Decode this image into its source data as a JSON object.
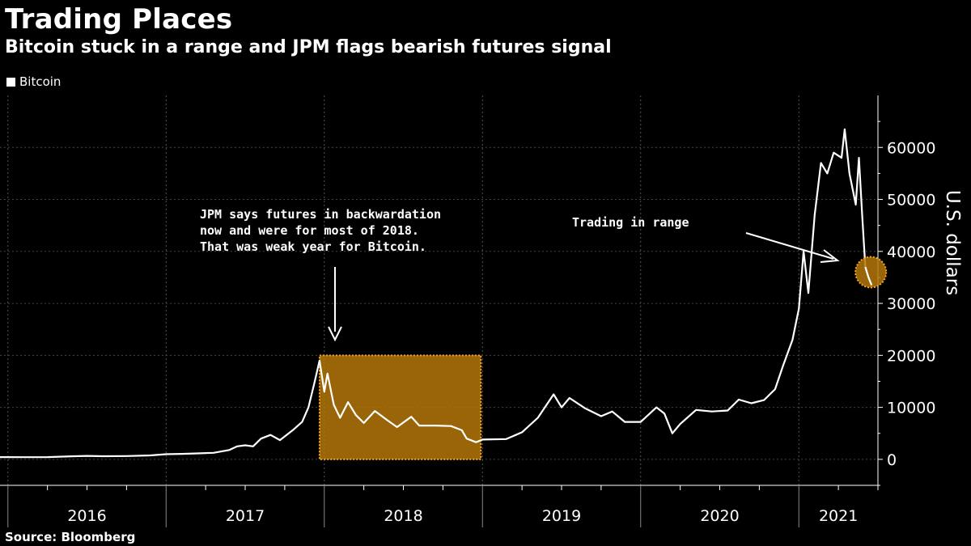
{
  "header": {
    "title": "Trading Places",
    "subtitle": "Bitcoin stuck in a range and JPM flags bearish futures signal"
  },
  "legend": {
    "label": "Bitcoin"
  },
  "source": "Source: Bloomberg",
  "colors": {
    "background": "#000000",
    "line": "#ffffff",
    "highlight": "#c8860a",
    "highlight_border": "#f5a623"
  },
  "chart_data": {
    "type": "line",
    "ylabel": "U.S. dollars",
    "xlabel": "",
    "ylim": [
      -5000,
      70000
    ],
    "yticks": [
      0,
      10000,
      20000,
      30000,
      40000,
      50000,
      60000
    ],
    "xlim": [
      2015.95,
      2021.5
    ],
    "year_labels": [
      "2016",
      "2017",
      "2018",
      "2019",
      "2020",
      "2021"
    ],
    "series": [
      {
        "name": "Bitcoin",
        "points": [
          [
            2015.95,
            430
          ],
          [
            2016.1,
            420
          ],
          [
            2016.25,
            430
          ],
          [
            2016.4,
            580
          ],
          [
            2016.5,
            670
          ],
          [
            2016.6,
            600
          ],
          [
            2016.75,
            630
          ],
          [
            2016.9,
            750
          ],
          [
            2017.0,
            990
          ],
          [
            2017.1,
            1050
          ],
          [
            2017.2,
            1150
          ],
          [
            2017.3,
            1250
          ],
          [
            2017.4,
            1800
          ],
          [
            2017.45,
            2500
          ],
          [
            2017.5,
            2700
          ],
          [
            2017.55,
            2500
          ],
          [
            2017.6,
            4000
          ],
          [
            2017.66,
            4700
          ],
          [
            2017.72,
            3700
          ],
          [
            2017.8,
            5600
          ],
          [
            2017.86,
            7200
          ],
          [
            2017.9,
            10000
          ],
          [
            2017.94,
            15000
          ],
          [
            2017.97,
            19000
          ],
          [
            2018.0,
            13000
          ],
          [
            2018.02,
            16500
          ],
          [
            2018.06,
            10500
          ],
          [
            2018.1,
            8000
          ],
          [
            2018.15,
            11000
          ],
          [
            2018.2,
            8500
          ],
          [
            2018.25,
            7000
          ],
          [
            2018.32,
            9300
          ],
          [
            2018.4,
            7500
          ],
          [
            2018.46,
            6200
          ],
          [
            2018.55,
            8200
          ],
          [
            2018.6,
            6500
          ],
          [
            2018.7,
            6500
          ],
          [
            2018.8,
            6400
          ],
          [
            2018.87,
            5600
          ],
          [
            2018.9,
            4000
          ],
          [
            2018.96,
            3300
          ],
          [
            2019.0,
            3800
          ],
          [
            2019.15,
            3900
          ],
          [
            2019.25,
            5200
          ],
          [
            2019.35,
            8000
          ],
          [
            2019.45,
            12500
          ],
          [
            2019.5,
            10000
          ],
          [
            2019.55,
            11800
          ],
          [
            2019.65,
            9800
          ],
          [
            2019.75,
            8300
          ],
          [
            2019.82,
            9200
          ],
          [
            2019.9,
            7200
          ],
          [
            2020.0,
            7200
          ],
          [
            2020.1,
            10000
          ],
          [
            2020.15,
            8800
          ],
          [
            2020.2,
            5000
          ],
          [
            2020.25,
            6800
          ],
          [
            2020.35,
            9500
          ],
          [
            2020.45,
            9200
          ],
          [
            2020.55,
            9400
          ],
          [
            2020.62,
            11500
          ],
          [
            2020.7,
            10800
          ],
          [
            2020.78,
            11400
          ],
          [
            2020.85,
            13500
          ],
          [
            2020.9,
            18000
          ],
          [
            2020.96,
            23000
          ],
          [
            2021.0,
            29000
          ],
          [
            2021.03,
            40000
          ],
          [
            2021.06,
            32000
          ],
          [
            2021.1,
            47000
          ],
          [
            2021.14,
            57000
          ],
          [
            2021.18,
            55000
          ],
          [
            2021.22,
            59000
          ],
          [
            2021.27,
            58000
          ],
          [
            2021.29,
            63500
          ],
          [
            2021.32,
            55000
          ],
          [
            2021.36,
            49000
          ],
          [
            2021.38,
            58000
          ],
          [
            2021.4,
            47000
          ],
          [
            2021.42,
            37000
          ],
          [
            2021.44,
            35000
          ],
          [
            2021.46,
            33500
          ]
        ]
      }
    ],
    "highlights": [
      {
        "x0": 2017.97,
        "x1": 2018.99,
        "y0": 0,
        "y1": 20000,
        "shape": "rect"
      },
      {
        "x": 2021.455,
        "y": 36000,
        "shape": "circle"
      }
    ],
    "annotations": [
      {
        "id": "jpm",
        "lines": [
          "JPM says futures in backwardation",
          "now and were for most of 2018.",
          "That was weak year for Bitcoin."
        ]
      },
      {
        "id": "range",
        "lines": [
          "Trading in range"
        ]
      }
    ]
  }
}
